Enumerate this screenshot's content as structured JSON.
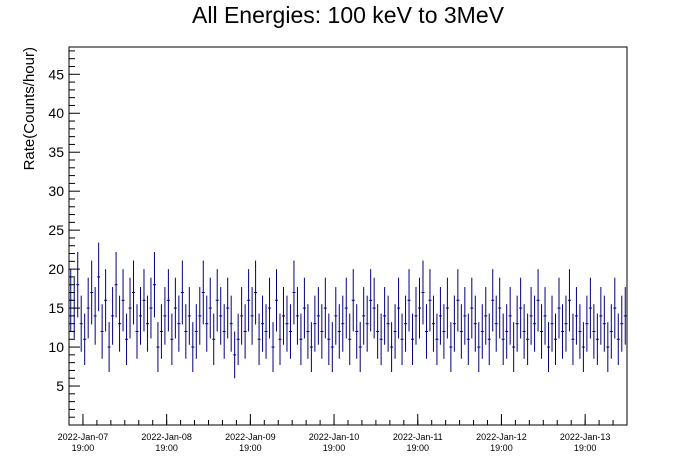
{
  "chart_data": {
    "type": "scatter",
    "title": "All Energies:  100 keV to 3MeV",
    "ylabel": "Rate(Counts/hour)",
    "xlabel": "",
    "ylim": [
      0,
      48.5
    ],
    "y_ticks": [
      5,
      10,
      15,
      20,
      25,
      30,
      35,
      40,
      45
    ],
    "x_range_hours": [
      0,
      160
    ],
    "x_tick_labels": [
      {
        "date": "2022-Jan-07",
        "time": "19:00",
        "hour": 4
      },
      {
        "date": "2022-Jan-08",
        "time": "19:00",
        "hour": 28
      },
      {
        "date": "2022-Jan-09",
        "time": "19:00",
        "hour": 52
      },
      {
        "date": "2022-Jan-10",
        "time": "19:00",
        "hour": 76
      },
      {
        "date": "2022-Jan-11",
        "time": "19:00",
        "hour": 100
      },
      {
        "date": "2022-Jan-12",
        "time": "19:00",
        "hour": 124
      },
      {
        "date": "2022-Jan-13",
        "time": "19:00",
        "hour": 148
      }
    ],
    "grid": false,
    "legend": "none",
    "colors": {
      "points": "#00007f",
      "axis": "#000000"
    },
    "series": [
      {
        "values": [
          16,
          15,
          18,
          13,
          11,
          15,
          17,
          14,
          19,
          12,
          16,
          10,
          14,
          18,
          13,
          16,
          11,
          15,
          17,
          12,
          14,
          16,
          13,
          15,
          18,
          10,
          12,
          14,
          16,
          11,
          15,
          13,
          17,
          12,
          14,
          10,
          12,
          14,
          17,
          13,
          15,
          11,
          16,
          14,
          12,
          15,
          13,
          9,
          11,
          14,
          12,
          16,
          14,
          17,
          11,
          13,
          12,
          15,
          10,
          16,
          11,
          14,
          13,
          12,
          17,
          14,
          11,
          15,
          12,
          10,
          13,
          14,
          12,
          15,
          11,
          10,
          14,
          12,
          13,
          15,
          11,
          16,
          12,
          10,
          14,
          13,
          16,
          15,
          12,
          11,
          14,
          13,
          10,
          12,
          15,
          11,
          13,
          16,
          11,
          14,
          15,
          17,
          12,
          16,
          13,
          11,
          14,
          12,
          15,
          10,
          13,
          16,
          12,
          14,
          11,
          15,
          13,
          10,
          12,
          14,
          11,
          16,
          13,
          15,
          11,
          12,
          14,
          10,
          13,
          15,
          12,
          11,
          14,
          13,
          16,
          12,
          14,
          10,
          13,
          11,
          15,
          12,
          13,
          16,
          11,
          14,
          12,
          10,
          13,
          15,
          12,
          11,
          14,
          13,
          10,
          12,
          15,
          11,
          13,
          14
        ],
        "errors": [
          4,
          3.9,
          4.2,
          3.6,
          3.3,
          3.9,
          4.1,
          3.7,
          4.4,
          3.5,
          4,
          3.2,
          3.7,
          4.2,
          3.6,
          4,
          3.3,
          3.9,
          4.1,
          3.5,
          3.7,
          4,
          3.6,
          3.9,
          4.2,
          3.2,
          3.5,
          3.7,
          4,
          3.3,
          3.9,
          3.6,
          4.1,
          3.5,
          3.7,
          3.2,
          3.5,
          3.7,
          4.1,
          3.6,
          3.9,
          3.3,
          4,
          3.7,
          3.5,
          3.9,
          3.6,
          3,
          3.3,
          3.7,
          3.5,
          4,
          3.7,
          4.1,
          3.3,
          3.6,
          3.5,
          3.9,
          3.2,
          4,
          3.3,
          3.7,
          3.6,
          3.5,
          4.1,
          3.7,
          3.3,
          3.9,
          3.5,
          3.2,
          3.6,
          3.7,
          3.5,
          3.9,
          3.3,
          3.2,
          3.7,
          3.5,
          3.6,
          3.9,
          3.3,
          4,
          3.5,
          3.2,
          3.7,
          3.6,
          4,
          3.9,
          3.5,
          3.3,
          3.7,
          3.6,
          3.2,
          3.5,
          3.9,
          3.3,
          3.6,
          4,
          3.3,
          3.7,
          3.9,
          4.1,
          3.5,
          4,
          3.6,
          3.3,
          3.7,
          3.5,
          3.9,
          3.2,
          3.6,
          4,
          3.5,
          3.7,
          3.3,
          3.9,
          3.6,
          3.2,
          3.5,
          3.7,
          3.3,
          4,
          3.6,
          3.9,
          3.3,
          3.5,
          3.7,
          3.2,
          3.6,
          3.9,
          3.5,
          3.3,
          3.7,
          3.6,
          4,
          3.5,
          3.7,
          3.2,
          3.6,
          3.3,
          3.9,
          3.5,
          3.6,
          4,
          3.3,
          3.7,
          3.5,
          3.2,
          3.6,
          3.9,
          3.5,
          3.3,
          3.7,
          3.6,
          3.2,
          3.5,
          3.9,
          3.3,
          3.6,
          3.7
        ]
      }
    ]
  }
}
